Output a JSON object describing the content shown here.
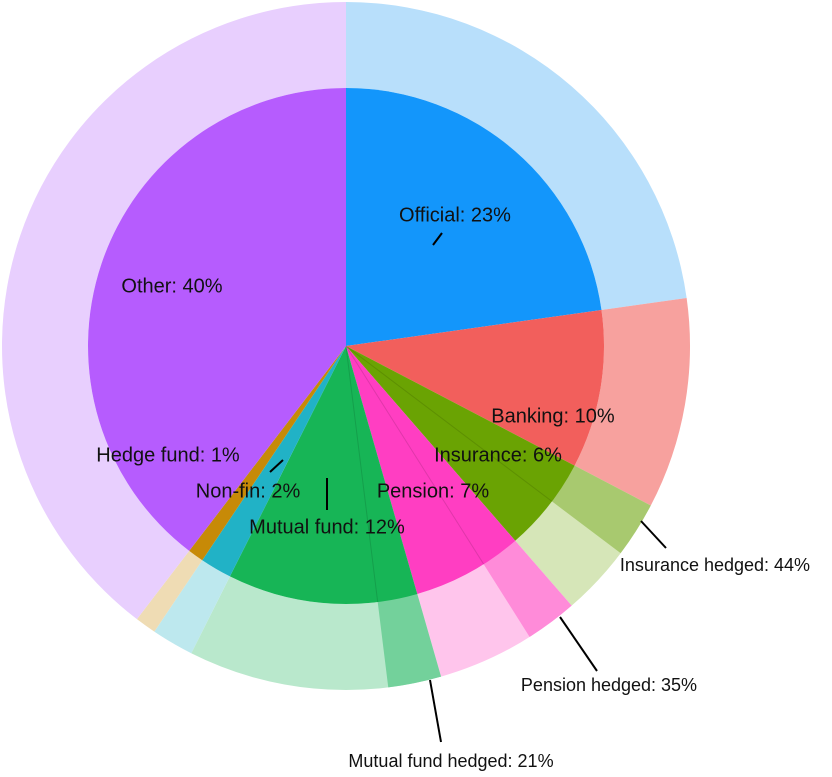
{
  "chart_data": {
    "type": "nested-pie",
    "labels": [
      "Official: 23%",
      "Banking: 10%",
      "Insurance: 6%",
      "Pension: 7%",
      "Mutual fund: 12%",
      "Non-fin: 2%",
      "Hedge fund: 1%",
      "Other: 40%"
    ],
    "values": [
      23,
      10,
      6,
      7,
      12,
      2,
      1,
      40
    ],
    "colors": [
      "#1396fb",
      "#f25f5c",
      "#6aa303",
      "#ff3ec2",
      "#17b556",
      "#21b2c6",
      "#c78a07",
      "#b65cfe"
    ],
    "outer_colors": [
      "#b8dffb",
      "#f7a19e",
      "#d6e6b8",
      "#ffc5ec",
      "#b9e8cc",
      "#bde8ee",
      "#efdcb4",
      "#e8cffe"
    ],
    "hedged_values": [
      null,
      null,
      44,
      35,
      21,
      null,
      null,
      null
    ],
    "hedged_labels": [
      null,
      null,
      "Insurance hedged: 44%",
      "Pension hedged: 35%",
      "Mutual fund hedged: 21%",
      null,
      null,
      null
    ],
    "hedged_colors": [
      null,
      null,
      "#a8c96f",
      "#ff8bd9",
      "#73d19b",
      null,
      null,
      null
    ]
  }
}
